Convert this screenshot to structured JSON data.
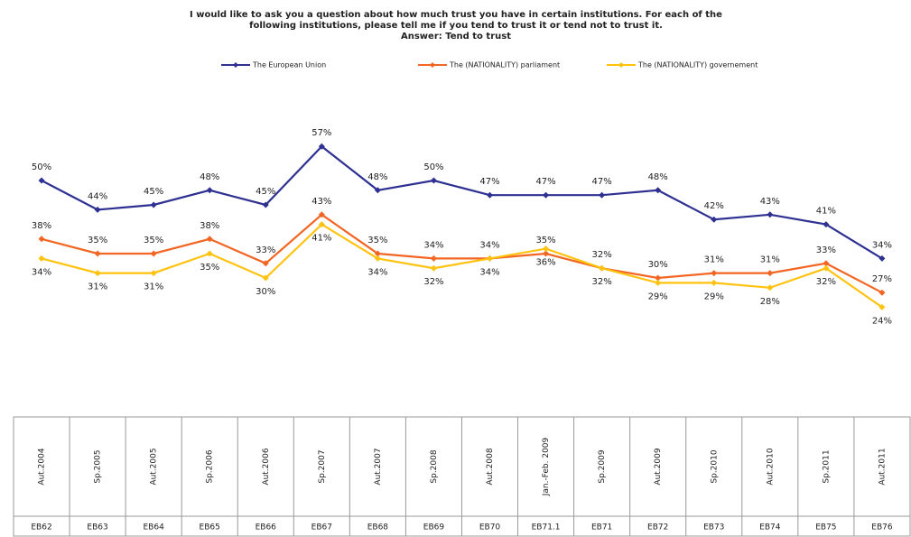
{
  "chart_data": {
    "type": "line",
    "title": [
      "I would like to ask you a question about how much trust you have in certain institutions. For each of the",
      "following institutions, please tell me if you tend to trust it or tend not to trust it."
    ],
    "subtitle": "Answer: Tend to trust",
    "categories": [
      "Aut.2004",
      "Sp.2005",
      "Aut.2005",
      "Sp.2006",
      "Aut.2006",
      "Sp.2007",
      "Aut.2007",
      "Sp.2008",
      "Aut.2008",
      "Jan.-Feb. 2009",
      "Sp.2009",
      "Aut.2009",
      "Sp.2010",
      "Aut.2010",
      "Sp.2011",
      "Aut.2011"
    ],
    "codes": [
      "EB62",
      "EB63",
      "EB64",
      "EB65",
      "EB66",
      "EB67",
      "EB68",
      "EB69",
      "EB70",
      "EB71.1",
      "EB71",
      "EB72",
      "EB73",
      "EB74",
      "EB75",
      "EB76"
    ],
    "legend": "top",
    "series": [
      {
        "name": "The European Union",
        "color": "#2e3192",
        "values": [
          50,
          44,
          45,
          48,
          45,
          57,
          48,
          50,
          47,
          47,
          47,
          48,
          42,
          43,
          41,
          34
        ],
        "value_labels": [
          "50%",
          "44%",
          "45%",
          "48%",
          "45%",
          "57%",
          "48%",
          "50%",
          "47%",
          "47%",
          "47%",
          "48%",
          "42%",
          "43%",
          "41%",
          "34%"
        ]
      },
      {
        "name": "The (NATIONALITY) parliament",
        "color": "#f26522",
        "values": [
          38,
          35,
          35,
          38,
          33,
          43,
          35,
          34,
          34,
          35,
          32,
          30,
          31,
          31,
          33,
          27
        ],
        "value_labels": [
          "38%",
          "35%",
          "35%",
          "38%",
          "33%",
          "43%",
          "35%",
          "34%",
          "34%",
          "35%",
          "32%",
          "30%",
          "31%",
          "31%",
          "33%",
          "27%"
        ]
      },
      {
        "name": "The (NATIONALITY) governement",
        "color": "#ffc20e",
        "values": [
          34,
          31,
          31,
          35,
          30,
          41,
          34,
          32,
          34,
          36,
          32,
          29,
          29,
          28,
          32,
          24
        ],
        "value_labels": [
          "34%",
          "31%",
          "31%",
          "35%",
          "30%",
          "41%",
          "34%",
          "32%",
          "34%",
          "36%",
          "32%",
          "29%",
          "29%",
          "28%",
          "32%",
          "24%"
        ]
      }
    ]
  }
}
